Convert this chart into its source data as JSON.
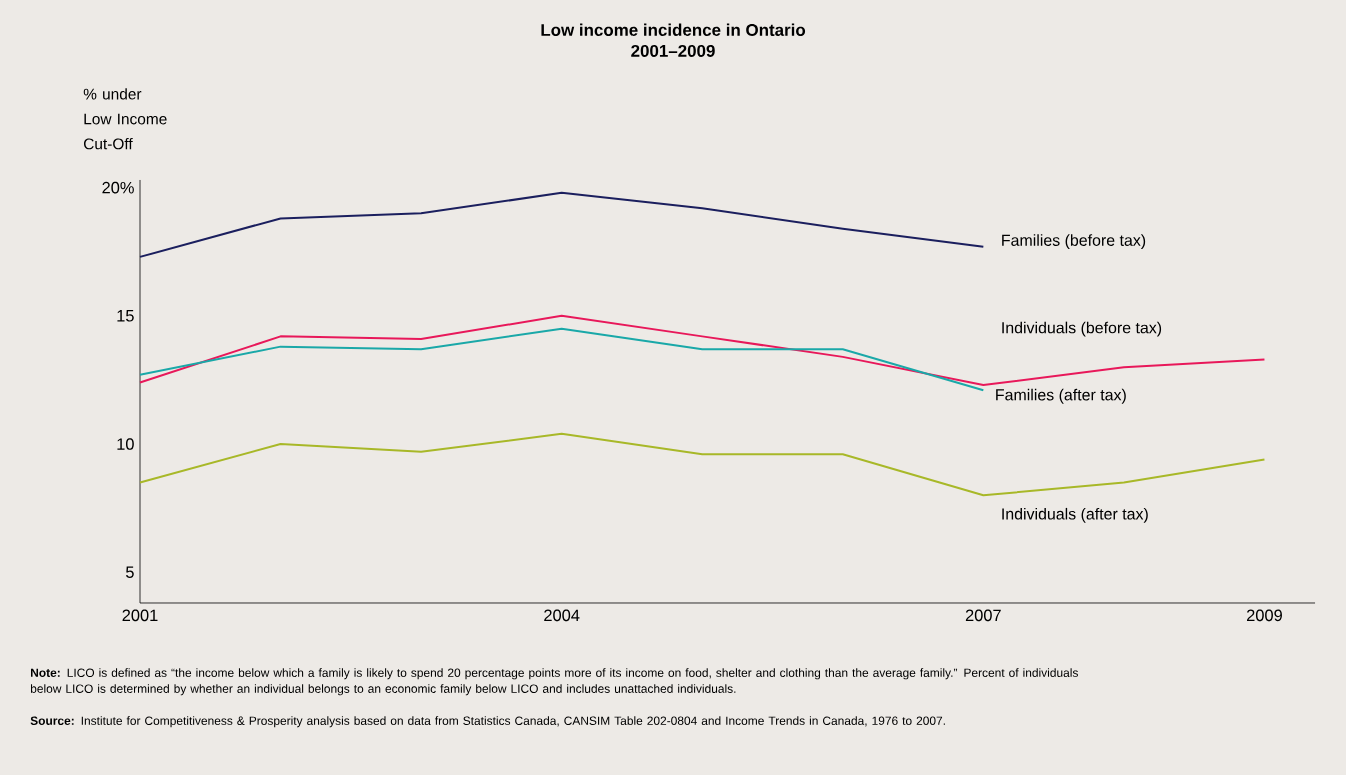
{
  "chart_data": {
    "type": "line",
    "title": "Low income incidence in Ontario",
    "subtitle": "2001–2009",
    "ylabel": "% under Low Income Cut-Off",
    "x": [
      2001,
      2002,
      2003,
      2004,
      2005,
      2006,
      2007,
      2008,
      2009
    ],
    "series": [
      {
        "name": "Families (before tax)",
        "color": "#1b1f5e",
        "values": [
          17.3,
          18.8,
          19.0,
          19.8,
          19.2,
          18.4,
          17.7,
          null,
          null
        ]
      },
      {
        "name": "Individuals (before tax)",
        "color": "#e8185a",
        "values": [
          12.4,
          14.2,
          14.1,
          15.0,
          14.2,
          13.4,
          12.3,
          13.0,
          13.3
        ]
      },
      {
        "name": "Families (after tax)",
        "color": "#1aa8a8",
        "values": [
          12.7,
          13.8,
          13.7,
          14.5,
          13.7,
          13.7,
          12.1,
          null,
          null
        ]
      },
      {
        "name": "Individuals (after tax)",
        "color": "#a8b828",
        "values": [
          8.5,
          10.0,
          9.7,
          10.4,
          9.6,
          9.6,
          8.0,
          8.5,
          9.4
        ]
      }
    ],
    "xlim": [
      2001,
      2009.36
    ],
    "xticks": [
      2001,
      2004,
      2007,
      2009
    ],
    "ylim": [
      3.8,
      20.3
    ],
    "yticks": [
      5,
      10,
      15,
      {
        "value": 20,
        "label": "20%"
      }
    ],
    "grid": false,
    "annotations": [
      "**Note:** LICO is defined as “the income below which a family is likely to spend 20 percentage points more of its income on food, shelter and clothing than the average family.” Percent of individuals below LICO is determined by whether an individual belongs to an economic family below LICO and includes unattached individuals.",
      "**Source:** Institute for Competitiveness & Prosperity analysis based on data from Statistics Canada, CANSIM Table 202-0804 and Income Trends in Canada, 1976 to 2007."
    ]
  }
}
